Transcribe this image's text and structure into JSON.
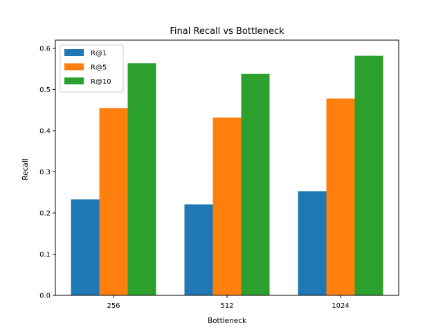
{
  "chart_data": {
    "type": "bar",
    "title": "Final Recall vs Bottleneck",
    "xlabel": "Bottleneck",
    "ylabel": "Recall",
    "categories": [
      "256",
      "512",
      "1024"
    ],
    "ylim": [
      0,
      0.62
    ],
    "yticks": [
      0.0,
      0.1,
      0.2,
      0.3,
      0.4,
      0.5,
      0.6
    ],
    "ytick_labels": [
      "0.0",
      "0.1",
      "0.2",
      "0.3",
      "0.4",
      "0.5",
      "0.6"
    ],
    "grid": false,
    "legend_position": "top-left",
    "series": [
      {
        "name": "R@1",
        "color": "#1f77b4",
        "values": [
          0.233,
          0.221,
          0.253
        ]
      },
      {
        "name": "R@5",
        "color": "#ff7f0e",
        "values": [
          0.455,
          0.432,
          0.478
        ]
      },
      {
        "name": "R@10",
        "color": "#2ca02c",
        "values": [
          0.564,
          0.538,
          0.582
        ]
      }
    ]
  }
}
